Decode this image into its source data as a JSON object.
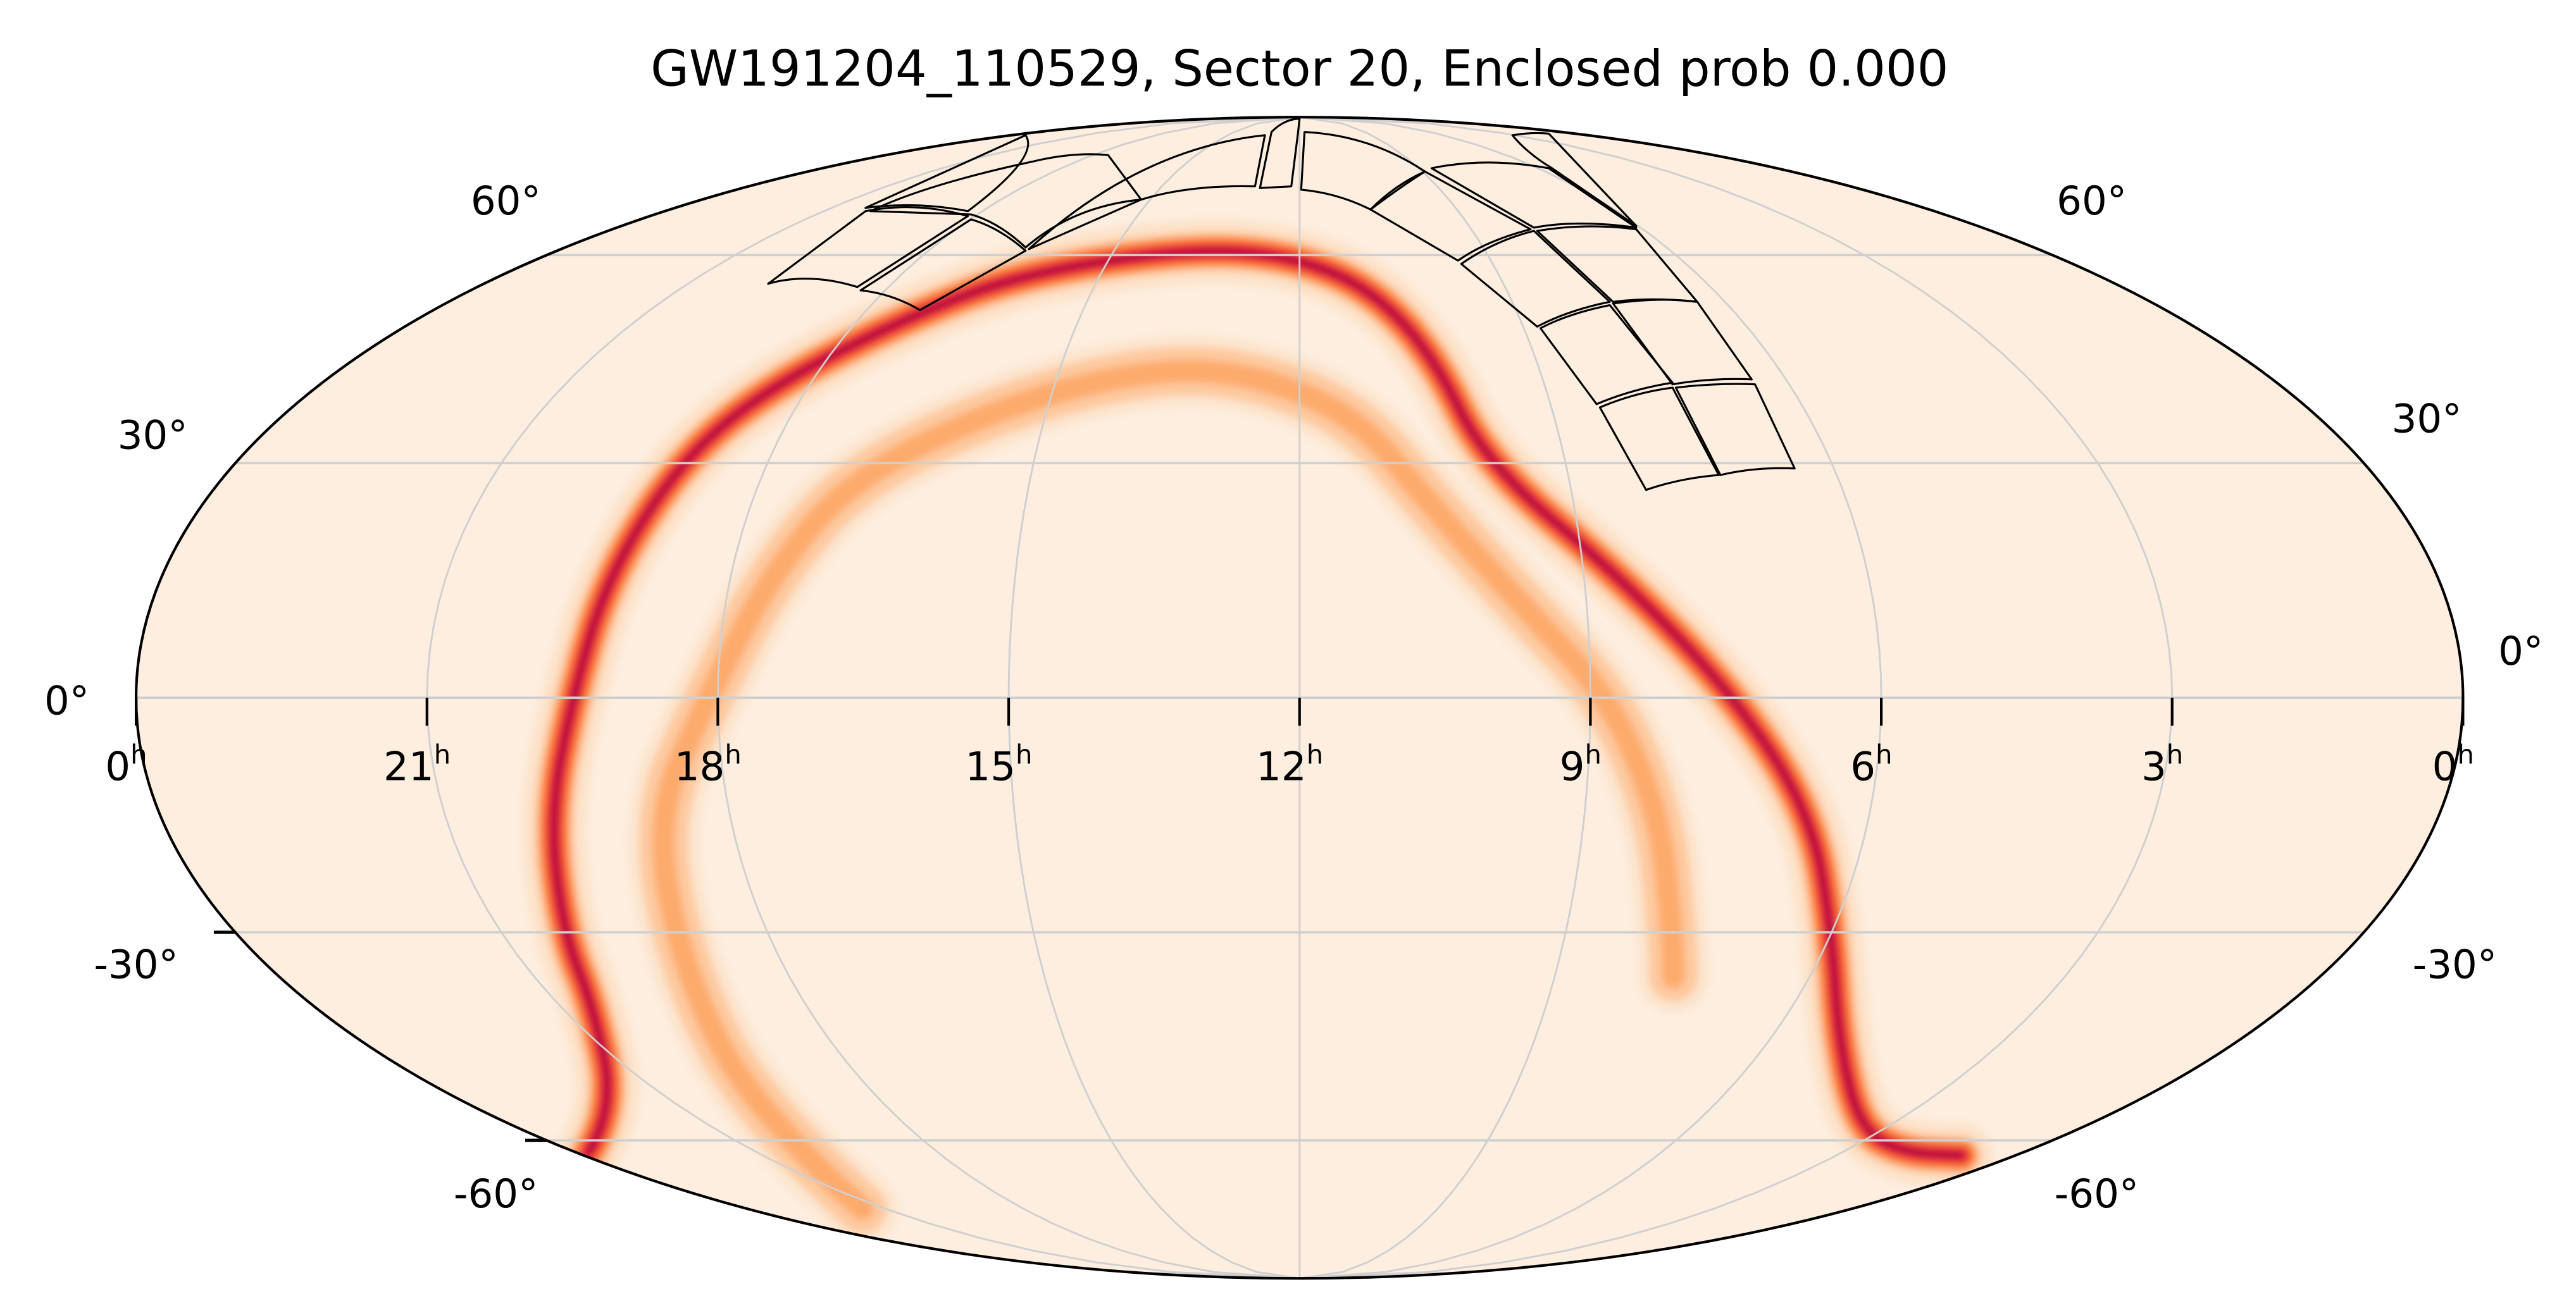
{
  "chart_data": {
    "type": "heatmap",
    "projection": "mollweide",
    "title": "GW191204_110529, Sector 20, Enclosed prob 0.000",
    "xlabel": "",
    "ylabel": "",
    "ra_ticks": [
      "0",
      "21",
      "18",
      "15",
      "12",
      "9",
      "6",
      "3",
      "0"
    ],
    "ra_tick_hours": [
      24,
      21,
      18,
      15,
      12,
      9,
      6,
      3,
      0
    ],
    "ra_unit": "h",
    "dec_ticks_left": [
      "60°",
      "30°",
      "0°",
      "-30°",
      "-60°"
    ],
    "dec_ticks_right": [
      "60°",
      "30°",
      "0°",
      "-30°",
      "-60°"
    ],
    "dec_grid": [
      60,
      30,
      0,
      -30,
      -60
    ],
    "grid": true,
    "colormap": "sequential light-peach to orange to crimson to dark maroon",
    "colors": {
      "background": "#fdeee0",
      "low": "#fdd6b4",
      "mid": "#fd8d3c",
      "high": "#e8134a",
      "peak": "#4d0022",
      "grid": "#cfcfcf",
      "footprint": "#000000"
    },
    "series": [
      {
        "name": "primary probability arc",
        "points_ra_h_dec_deg": [
          [
            23.8,
            -62
          ],
          [
            22.0,
            -55
          ],
          [
            20.6,
            -40
          ],
          [
            20.3,
            -30
          ],
          [
            19.9,
            -15
          ],
          [
            19.5,
            0
          ],
          [
            19.3,
            15
          ],
          [
            19.0,
            30
          ],
          [
            18.5,
            40
          ],
          [
            17.4,
            50
          ],
          [
            16.2,
            57
          ],
          [
            13.8,
            61
          ],
          [
            12.2,
            60
          ],
          [
            11.0,
            55
          ],
          [
            10.3,
            45
          ],
          [
            9.9,
            30
          ],
          [
            8.6,
            15
          ],
          [
            7.5,
            0
          ],
          [
            6.6,
            -15
          ],
          [
            6.0,
            -30
          ],
          [
            5.1,
            -45
          ],
          [
            3.4,
            -58
          ],
          [
            2.0,
            -62
          ],
          [
            0.9,
            -62.5
          ]
        ],
        "peak_density": 1.0
      },
      {
        "name": "secondary probability arc",
        "points_ra_h_dec_deg": [
          [
            21.5,
            -72
          ],
          [
            20.0,
            -55
          ],
          [
            19.2,
            -35
          ],
          [
            18.8,
            -15
          ],
          [
            18.1,
            0
          ],
          [
            17.6,
            15
          ],
          [
            17.0,
            28
          ],
          [
            15.5,
            38
          ],
          [
            13.8,
            43
          ],
          [
            12.5,
            42
          ],
          [
            11.3,
            36
          ],
          [
            10.6,
            25
          ],
          [
            9.7,
            12
          ],
          [
            8.8,
            0
          ],
          [
            8.2,
            -15
          ],
          [
            7.8,
            -30
          ],
          [
            7.6,
            -36
          ]
        ],
        "peak_density": 0.45
      }
    ],
    "footprint": "TESS Sector 20 camera/CCD tiles (16 outlined regions, northern sky)"
  }
}
